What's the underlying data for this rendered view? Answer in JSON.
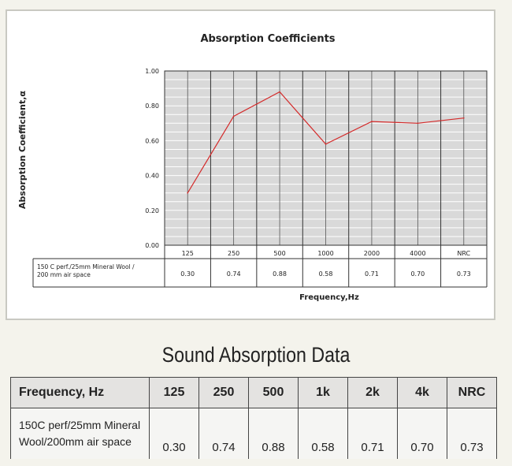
{
  "chart_data": {
    "type": "line",
    "title": "Absorption Coefficients",
    "ylabel": "Absorption Coefficient,α",
    "xlabel": "Frequency,Hz",
    "categories": [
      "125",
      "250",
      "500",
      "1000",
      "2000",
      "4000",
      "NRC"
    ],
    "ylim": [
      0,
      1
    ],
    "yticks": [
      "0.00",
      "0.20",
      "0.40",
      "0.60",
      "0.80",
      "1.00"
    ],
    "grid": true,
    "line_color": "#d42a2a",
    "series": [
      {
        "name": "150 C perf./25mm Mineral Wool / 200 mm air space",
        "values": [
          0.3,
          0.74,
          0.88,
          0.58,
          0.71,
          0.7,
          0.73
        ],
        "labels": [
          "0.30",
          "0.74",
          "0.88",
          "0.58",
          "0.71",
          "0.70",
          "0.73"
        ]
      }
    ],
    "row_label_lines": [
      "150 C perf./25mm Mineral Wool /",
      "200 mm air space"
    ]
  },
  "table": {
    "title": "Sound Absorption Data",
    "header_first": "Frequency, Hz",
    "headers": [
      "125",
      "250",
      "500",
      "1k",
      "2k",
      "4k",
      "NRC"
    ],
    "row_label_lines": [
      "150C perf/25mm Mineral",
      "Wool/200mm air  space"
    ],
    "values": [
      "0.30",
      "0.74",
      "0.88",
      "0.58",
      "0.71",
      "0.70",
      "0.73"
    ]
  }
}
